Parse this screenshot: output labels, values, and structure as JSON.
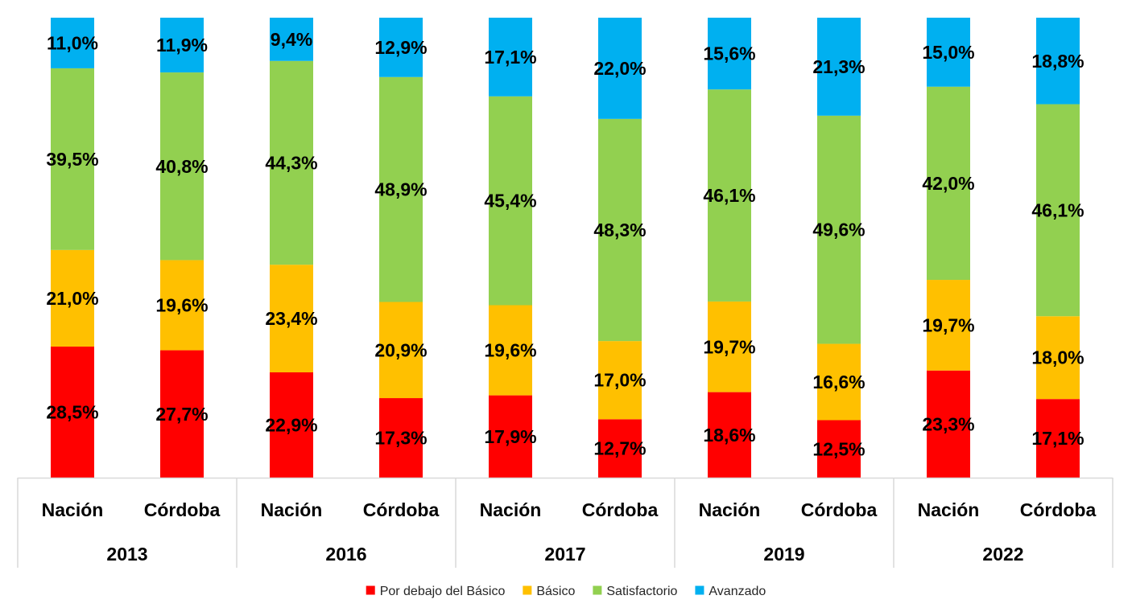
{
  "chart_data": {
    "type": "bar",
    "stacked": true,
    "percent": true,
    "groups": [
      {
        "year": "2013",
        "categories": [
          "Nación",
          "Córdoba"
        ]
      },
      {
        "year": "2016",
        "categories": [
          "Nación",
          "Córdoba"
        ]
      },
      {
        "year": "2017",
        "categories": [
          "Nación",
          "Córdoba"
        ]
      },
      {
        "year": "2019",
        "categories": [
          "Nación",
          "Córdoba"
        ]
      },
      {
        "year": "2022",
        "categories": [
          "Nación",
          "Córdoba"
        ]
      }
    ],
    "series": [
      {
        "name": "Por debajo del Básico",
        "color": "#ff0000",
        "values": [
          28.5,
          27.7,
          22.9,
          17.3,
          17.9,
          12.7,
          18.6,
          12.5,
          23.3,
          17.1
        ],
        "labels": [
          "28,5%",
          "27,7%",
          "22,9%",
          "17,3%",
          "17,9%",
          "12,7%",
          "18,6%",
          "12,5%",
          "23,3%",
          "17,1%"
        ]
      },
      {
        "name": "Básico",
        "color": "#ffc000",
        "values": [
          21.0,
          19.6,
          23.4,
          20.9,
          19.6,
          17.0,
          19.7,
          16.6,
          19.7,
          18.0
        ],
        "labels": [
          "21,0%",
          "19,6%",
          "23,4%",
          "20,9%",
          "19,6%",
          "17,0%",
          "19,7%",
          "16,6%",
          "19,7%",
          "18,0%"
        ]
      },
      {
        "name": "Satisfactorio",
        "color": "#92d050",
        "values": [
          39.5,
          40.8,
          44.3,
          48.9,
          45.4,
          48.3,
          46.1,
          49.6,
          42.0,
          46.1
        ],
        "labels": [
          "39,5%",
          "40,8%",
          "44,3%",
          "48,9%",
          "45,4%",
          "48,3%",
          "46,1%",
          "49,6%",
          "42,0%",
          "46,1%"
        ]
      },
      {
        "name": "Avanzado",
        "color": "#00b0f0",
        "values": [
          11.0,
          11.9,
          9.4,
          12.9,
          17.1,
          22.0,
          15.6,
          21.3,
          15.0,
          18.8
        ],
        "labels": [
          "11,0%",
          "11,9%",
          "9,4%",
          "12,9%",
          "17,1%",
          "22,0%",
          "15,6%",
          "21,3%",
          "15,0%",
          "18,8%"
        ]
      }
    ],
    "ylim": [
      0,
      100
    ],
    "grid": false,
    "legend": "bottom"
  }
}
